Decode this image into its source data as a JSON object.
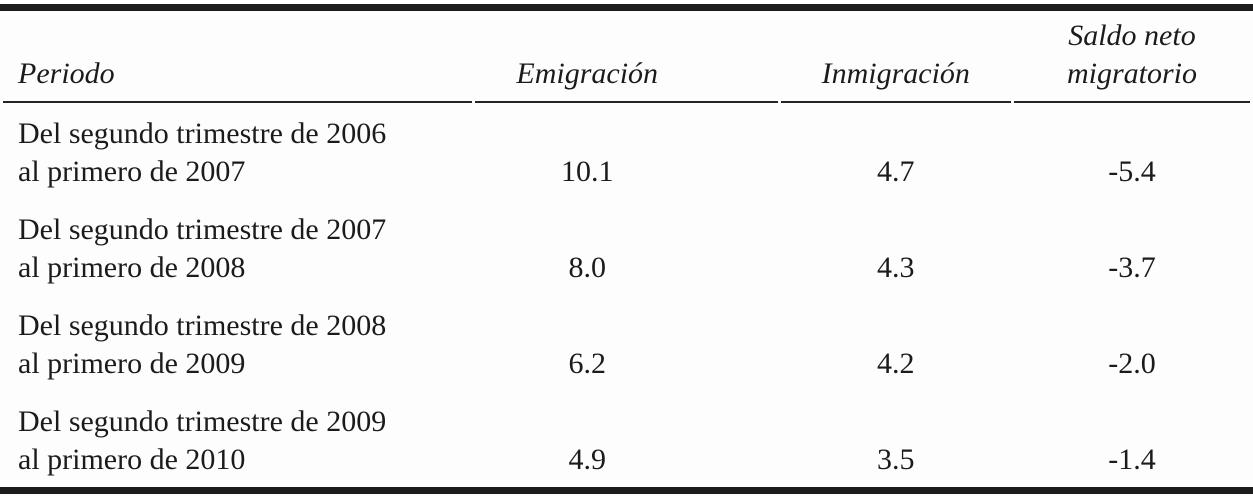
{
  "page": {
    "background_color": "#fdfdfd",
    "text_color": "#1b1b1b",
    "rule_color": "#1c1c1c"
  },
  "table": {
    "columns": [
      {
        "id": "periodo",
        "label": "Periodo"
      },
      {
        "id": "emigracion",
        "label": "Emigración"
      },
      {
        "id": "inmigracion",
        "label": "Inmigración"
      },
      {
        "id": "saldo_neto_migratorio",
        "label_line1": "Saldo neto",
        "label_line2": "migratorio"
      }
    ],
    "rows": [
      {
        "periodo_line1": "Del segundo trimestre de 2006",
        "periodo_line2": "al primero de 2007",
        "emigracion": "10.1",
        "inmigracion": "4.7",
        "saldo_neto": "-5.4"
      },
      {
        "periodo_line1": "Del segundo trimestre de 2007",
        "periodo_line2": "al primero de 2008",
        "emigracion": "8.0",
        "inmigracion": "4.3",
        "saldo_neto": "-3.7"
      },
      {
        "periodo_line1": "Del segundo trimestre de 2008",
        "periodo_line2": "al primero de 2009",
        "emigracion": "6.2",
        "inmigracion": "4.2",
        "saldo_neto": "-2.0"
      },
      {
        "periodo_line1": "Del segundo trimestre de 2009",
        "periodo_line2": "al primero de 2010",
        "emigracion": "4.9",
        "inmigracion": "3.5",
        "saldo_neto": "-1.4"
      }
    ]
  }
}
